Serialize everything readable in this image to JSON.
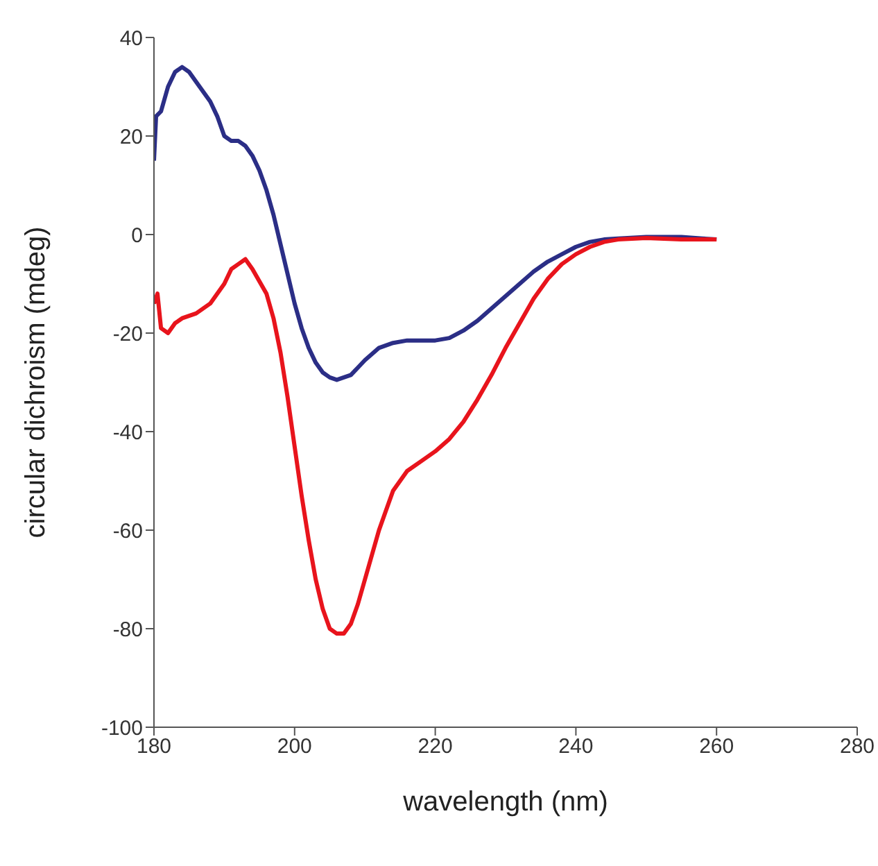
{
  "chart_data": {
    "type": "line",
    "xlabel": "wavelength (nm)",
    "ylabel": "circular dichroism (mdeg)",
    "xlim": [
      180,
      280
    ],
    "xticks": [
      180,
      200,
      220,
      240,
      260,
      280
    ],
    "ylim": [
      -100,
      40
    ],
    "yticks": [
      -100,
      -80,
      -60,
      -40,
      -20,
      0,
      20,
      40
    ],
    "grid": false,
    "series": [
      {
        "color": "#2b2e86",
        "x": [
          180,
          180.3,
          181,
          182,
          183,
          184,
          185,
          186,
          188,
          189,
          190,
          191,
          192,
          193,
          194,
          195,
          196,
          197,
          198,
          199,
          200,
          201,
          202,
          203,
          204,
          205,
          206,
          207,
          208,
          209,
          210,
          212,
          214,
          216,
          218,
          220,
          222,
          224,
          226,
          228,
          230,
          232,
          234,
          236,
          238,
          240,
          242,
          244,
          246,
          250,
          255,
          258,
          260
        ],
        "values": [
          15,
          24,
          25,
          30,
          33,
          34,
          33,
          31,
          27,
          24,
          20,
          19,
          19,
          18,
          16,
          13,
          9,
          4,
          -2,
          -8,
          -14,
          -19,
          -23,
          -26,
          -28,
          -29,
          -29.5,
          -29,
          -28.5,
          -27,
          -25.5,
          -23,
          -22,
          -21.5,
          -21.5,
          -21.5,
          -21,
          -19.5,
          -17.5,
          -15,
          -12.5,
          -10,
          -7.5,
          -5.5,
          -4,
          -2.5,
          -1.5,
          -1,
          -0.8,
          -0.5,
          -0.5,
          -0.8,
          -1
        ]
      },
      {
        "color": "#e8141c",
        "x": [
          180,
          180.5,
          181,
          182,
          183,
          184,
          186,
          188,
          190,
          191,
          192,
          193,
          194,
          196,
          197,
          198,
          199,
          200,
          201,
          202,
          203,
          204,
          205,
          206,
          207,
          208,
          209,
          210,
          211,
          212,
          213,
          214,
          216,
          218,
          220,
          222,
          224,
          226,
          228,
          230,
          232,
          234,
          236,
          238,
          240,
          242,
          244,
          246,
          250,
          255,
          260
        ],
        "values": [
          -14,
          -12,
          -19,
          -20,
          -18,
          -17,
          -16,
          -14,
          -10,
          -7,
          -6,
          -5,
          -7,
          -12,
          -17,
          -24,
          -33,
          -43,
          -53,
          -62,
          -70,
          -76,
          -80,
          -81,
          -81,
          -79,
          -75,
          -70,
          -65,
          -60,
          -56,
          -52,
          -48,
          -46,
          -44,
          -41.5,
          -38,
          -33.5,
          -28.5,
          -23,
          -18,
          -13,
          -9,
          -6,
          -4,
          -2.5,
          -1.5,
          -1,
          -0.7,
          -1,
          -1
        ]
      }
    ]
  }
}
